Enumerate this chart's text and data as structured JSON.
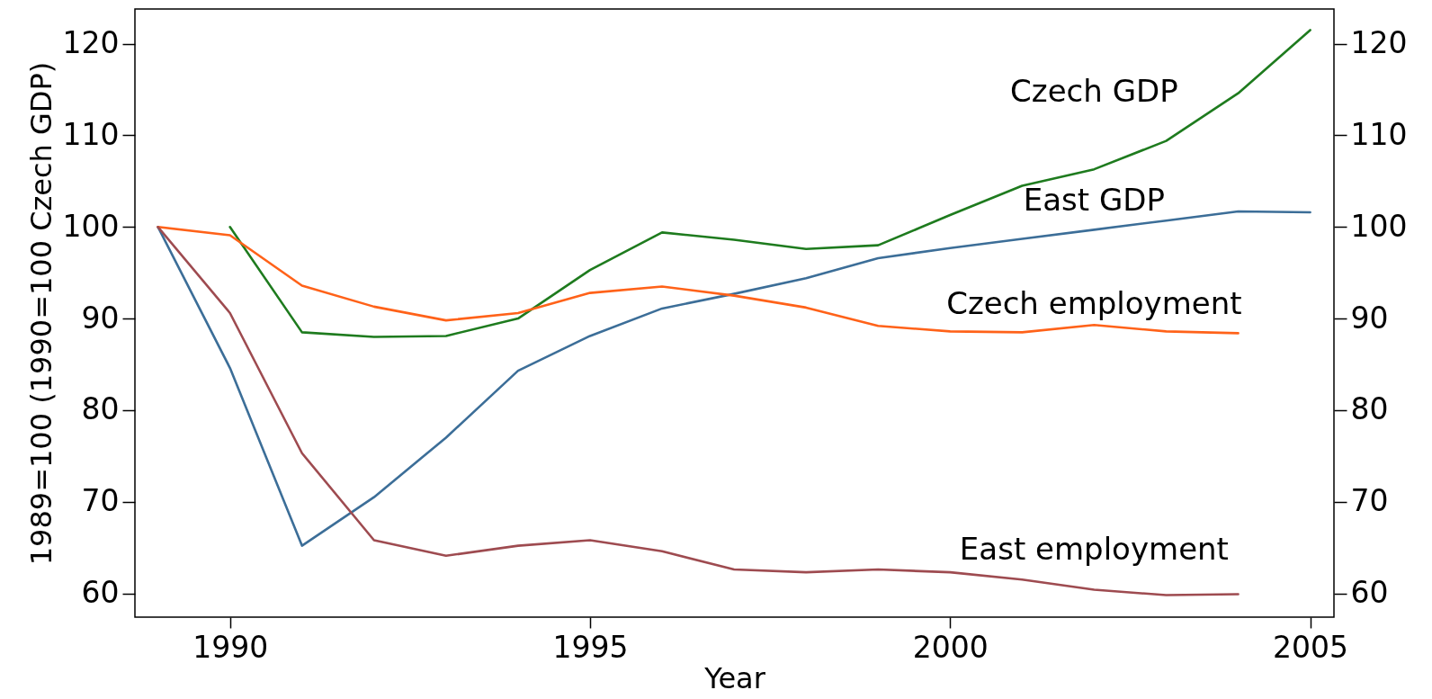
{
  "chart_data": {
    "type": "line",
    "xlabel": "Year",
    "ylabel": "1989=100 (1990=100 Czech GDP)",
    "x": [
      1989,
      1990,
      1991,
      1992,
      1993,
      1994,
      1995,
      1996,
      1997,
      1998,
      1999,
      2000,
      2001,
      2002,
      2003,
      2004,
      2005
    ],
    "series": [
      {
        "name": "Czech GDP",
        "color": "#1e7b1e",
        "x": [
          1990,
          1991,
          1992,
          1993,
          1994,
          1995,
          1996,
          1997,
          1998,
          1999,
          2000,
          2001,
          2002,
          2003,
          2004,
          2005
        ],
        "values": [
          100,
          88.5,
          88.0,
          88.1,
          90.0,
          95.3,
          99.4,
          98.6,
          97.6,
          98.0,
          101.3,
          104.5,
          106.3,
          109.4,
          114.6,
          121.5
        ]
      },
      {
        "name": "East GDP",
        "color": "#3c6e98",
        "values": [
          100,
          84.6,
          65.2,
          70.5,
          77.0,
          84.3,
          88.1,
          91.1,
          92.7,
          94.4,
          96.6,
          97.7,
          98.7,
          99.7,
          100.7,
          101.7,
          101.6
        ]
      },
      {
        "name": "Czech employment",
        "color": "#ff6219",
        "x": [
          1989,
          1990,
          1991,
          1992,
          1993,
          1994,
          1995,
          1996,
          1997,
          1998,
          1999,
          2000,
          2001,
          2002,
          2003,
          2004
        ],
        "values": [
          100,
          99.1,
          93.6,
          91.3,
          89.8,
          90.6,
          92.8,
          93.5,
          92.5,
          91.2,
          89.2,
          88.6,
          88.5,
          89.3,
          88.6,
          88.4
        ]
      },
      {
        "name": "East employment",
        "color": "#9e4b50",
        "x": [
          1989,
          1990,
          1991,
          1992,
          1993,
          1994,
          1995,
          1996,
          1997,
          1998,
          1999,
          2000,
          2001,
          2002,
          2003,
          2004
        ],
        "values": [
          100,
          90.6,
          75.3,
          65.8,
          64.1,
          65.2,
          65.8,
          64.6,
          62.6,
          62.3,
          62.6,
          62.3,
          61.5,
          60.4,
          59.8,
          59.9
        ]
      }
    ],
    "xlim": [
      1988.68,
      2005.33
    ],
    "xticks": [
      1990,
      1995,
      2000,
      2005
    ],
    "ylim": [
      57.4,
      123.8
    ],
    "yticks": [
      60,
      70,
      80,
      90,
      100,
      110,
      120
    ],
    "y2lim": [
      57.4,
      123.8
    ],
    "y2ticks": [
      60,
      70,
      80,
      90,
      100,
      110,
      120
    ]
  }
}
